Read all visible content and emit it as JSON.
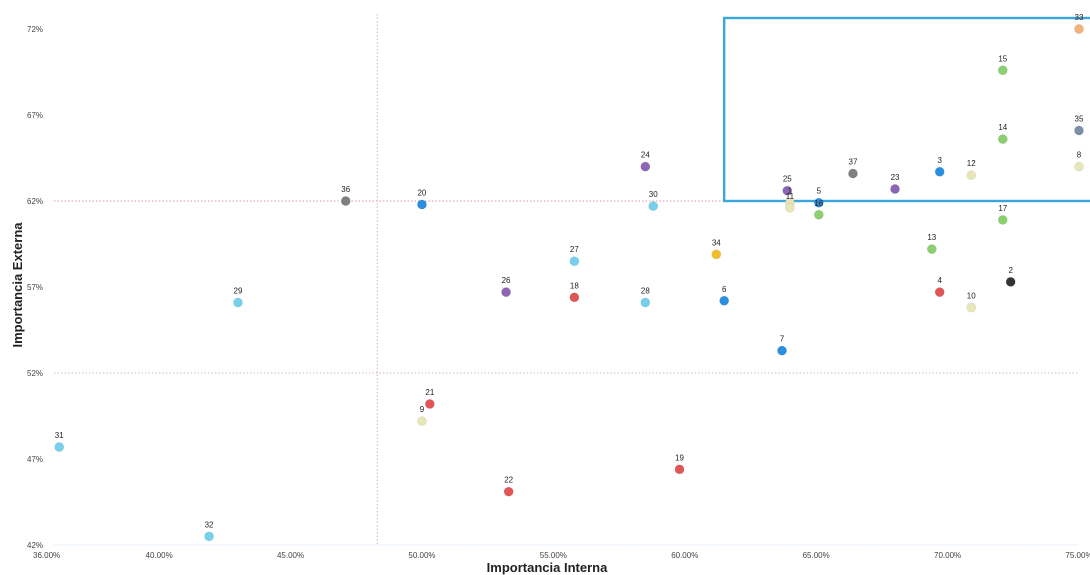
{
  "chart_data": {
    "type": "scatter",
    "title": "",
    "xlabel": "Importancia Interna",
    "ylabel": "Importancia Externa",
    "xlim": [
      36,
      75
    ],
    "ylim": [
      42,
      72
    ],
    "x_ticks": [
      {
        "value": 36,
        "label": "36.00%"
      },
      {
        "value": 40,
        "label": "40.00%"
      },
      {
        "value": 45,
        "label": "45.00%"
      },
      {
        "value": 50,
        "label": "50.00%"
      },
      {
        "value": 55,
        "label": "55.00%"
      },
      {
        "value": 60,
        "label": "60.00%"
      },
      {
        "value": 65,
        "label": "65.00%"
      },
      {
        "value": 70,
        "label": "70.00%"
      },
      {
        "value": 75,
        "label": "75.00%"
      }
    ],
    "y_ticks": [
      {
        "value": 42,
        "label": "42%"
      },
      {
        "value": 47,
        "label": "47%"
      },
      {
        "value": 52,
        "label": "52%"
      },
      {
        "value": 57,
        "label": "57%"
      },
      {
        "value": 62,
        "label": "62%"
      },
      {
        "value": 67,
        "label": "67%"
      },
      {
        "value": 72,
        "label": "72%"
      }
    ],
    "reference_lines": {
      "x": 48.3,
      "y": [
        62,
        52
      ]
    },
    "highlight_region": {
      "x": [
        61.5,
        75
      ],
      "y": [
        62,
        72
      ]
    },
    "grid": false,
    "points": [
      {
        "label": "1",
        "x": 64.0,
        "y": 61.9,
        "color": "#e6e6b8"
      },
      {
        "label": "2",
        "x": 72.4,
        "y": 57.3,
        "color": "#333333"
      },
      {
        "label": "3",
        "x": 69.7,
        "y": 63.7,
        "color": "#2b8fe0"
      },
      {
        "label": "4",
        "x": 69.7,
        "y": 56.7,
        "color": "#e05555"
      },
      {
        "label": "5",
        "x": 65.1,
        "y": 61.9,
        "color": "#2b8fe0"
      },
      {
        "label": "6",
        "x": 61.5,
        "y": 56.2,
        "color": "#2b8fe0"
      },
      {
        "label": "7",
        "x": 63.7,
        "y": 53.3,
        "color": "#2b8fe0"
      },
      {
        "label": "8",
        "x": 75.0,
        "y": 64.0,
        "color": "#e6e6b8"
      },
      {
        "label": "9",
        "x": 50.0,
        "y": 49.2,
        "color": "#e6e6b8"
      },
      {
        "label": "10",
        "x": 70.9,
        "y": 55.8,
        "color": "#e6e6b8"
      },
      {
        "label": "11",
        "x": 64.0,
        "y": 61.6,
        "color": "#e6e6b8"
      },
      {
        "label": "12",
        "x": 70.9,
        "y": 63.5,
        "color": "#e6e6b8"
      },
      {
        "label": "13",
        "x": 69.4,
        "y": 59.2,
        "color": "#8ccf6e"
      },
      {
        "label": "14",
        "x": 72.1,
        "y": 65.6,
        "color": "#8ccf6e"
      },
      {
        "label": "15",
        "x": 72.1,
        "y": 69.6,
        "color": "#8ccf6e"
      },
      {
        "label": "16",
        "x": 65.1,
        "y": 61.2,
        "color": "#8ccf6e"
      },
      {
        "label": "17",
        "x": 72.1,
        "y": 60.9,
        "color": "#8ccf6e"
      },
      {
        "label": "18",
        "x": 55.8,
        "y": 56.4,
        "color": "#e05555"
      },
      {
        "label": "19",
        "x": 59.8,
        "y": 46.4,
        "color": "#e05555"
      },
      {
        "label": "20",
        "x": 50.0,
        "y": 61.8,
        "color": "#2b8fe0"
      },
      {
        "label": "21",
        "x": 50.3,
        "y": 50.2,
        "color": "#e05555"
      },
      {
        "label": "22",
        "x": 53.3,
        "y": 45.1,
        "color": "#e05555"
      },
      {
        "label": "23",
        "x": 68.0,
        "y": 62.7,
        "color": "#8e65b6"
      },
      {
        "label": "24",
        "x": 58.5,
        "y": 64.0,
        "color": "#8e65b6"
      },
      {
        "label": "25",
        "x": 63.9,
        "y": 62.6,
        "color": "#8e65b6"
      },
      {
        "label": "26",
        "x": 53.2,
        "y": 56.7,
        "color": "#8e65b6"
      },
      {
        "label": "27",
        "x": 55.8,
        "y": 58.5,
        "color": "#76d0ec"
      },
      {
        "label": "28",
        "x": 58.5,
        "y": 56.1,
        "color": "#76d0ec"
      },
      {
        "label": "29",
        "x": 43.0,
        "y": 56.1,
        "color": "#76d0ec"
      },
      {
        "label": "30",
        "x": 58.8,
        "y": 61.7,
        "color": "#76d0ec"
      },
      {
        "label": "31",
        "x": 36.2,
        "y": 47.7,
        "color": "#76d0ec"
      },
      {
        "label": "32",
        "x": 41.9,
        "y": 42.5,
        "color": "#76d0ec"
      },
      {
        "label": "33",
        "x": 75.0,
        "y": 72.0,
        "color": "#f0b47a"
      },
      {
        "label": "34",
        "x": 61.2,
        "y": 58.9,
        "color": "#f0be2a"
      },
      {
        "label": "35",
        "x": 75.0,
        "y": 66.1,
        "color": "#7d8fa6"
      },
      {
        "label": "36",
        "x": 47.1,
        "y": 62.0,
        "color": "#7f7f7f"
      },
      {
        "label": "37",
        "x": 66.4,
        "y": 63.6,
        "color": "#7f7f7f"
      }
    ]
  }
}
